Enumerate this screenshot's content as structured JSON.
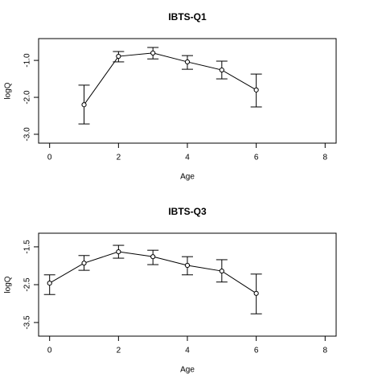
{
  "chart_data": [
    {
      "type": "line",
      "title": "IBTS-Q1",
      "xlabel": "Age",
      "ylabel": "logQ",
      "color": "#000000",
      "x": [
        1,
        2,
        3,
        4,
        5,
        6
      ],
      "values": [
        -2.2,
        -0.89,
        -0.8,
        -1.04,
        -1.26,
        -1.8
      ],
      "lower": [
        -2.72,
        -1.04,
        -0.96,
        -1.24,
        -1.5,
        -2.26
      ],
      "upper": [
        -1.67,
        -0.76,
        -0.65,
        -0.87,
        -1.02,
        -1.37
      ],
      "xlim": [
        -0.32,
        8.32
      ],
      "xticks": [
        0,
        2,
        4,
        6,
        8
      ],
      "ylim": [
        -3.24,
        -0.41
      ],
      "yticks": [
        {
          "value": -3,
          "label": "-3.0"
        },
        {
          "value": -2,
          "label": "-2.0"
        },
        {
          "value": -1,
          "label": "-1.0"
        }
      ]
    },
    {
      "type": "line",
      "title": "IBTS-Q3",
      "xlabel": "Age",
      "ylabel": "logQ",
      "color": "#000000",
      "x": [
        0,
        1,
        2,
        3,
        4,
        5,
        6
      ],
      "values": [
        -2.46,
        -1.93,
        -1.63,
        -1.76,
        -1.99,
        -2.14,
        -2.73
      ],
      "lower": [
        -2.76,
        -2.12,
        -1.8,
        -1.97,
        -2.24,
        -2.43,
        -3.27
      ],
      "upper": [
        -2.24,
        -1.73,
        -1.46,
        -1.59,
        -1.76,
        -1.84,
        -2.22
      ],
      "xlim": [
        -0.32,
        8.32
      ],
      "xticks": [
        0,
        2,
        4,
        6,
        8
      ],
      "ylim": [
        -3.86,
        -1.14
      ],
      "yticks": [
        {
          "value": -3.5,
          "label": "-3.5"
        },
        {
          "value": -2.5,
          "label": "-2.5"
        },
        {
          "value": -1.5,
          "label": "-1.5"
        }
      ]
    }
  ]
}
